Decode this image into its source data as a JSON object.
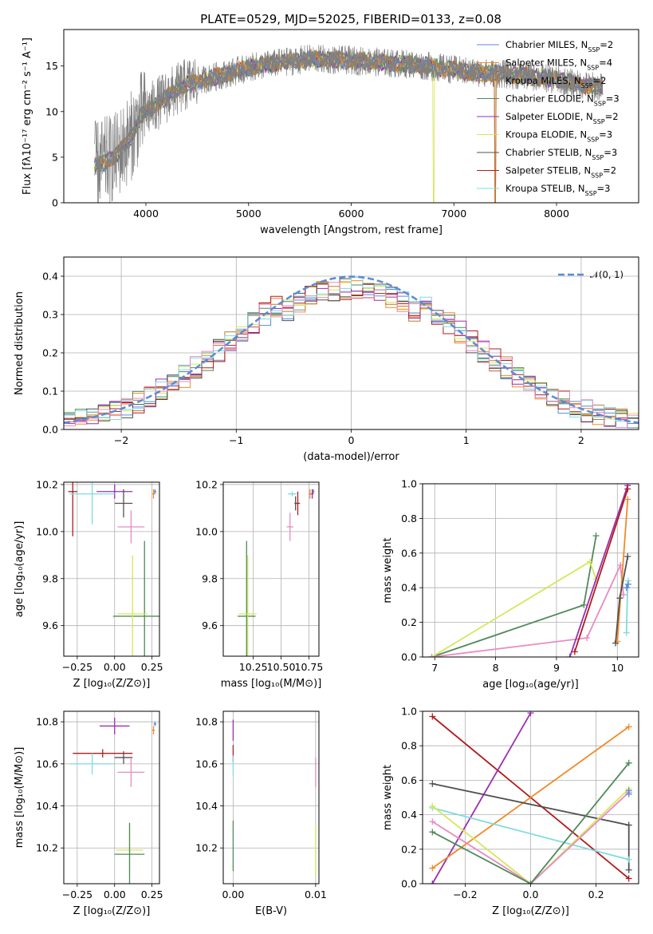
{
  "colors": {
    "Chabrier MILES": "#5b8bd6",
    "Salpeter MILES": "#f08a2a",
    "Kroupa MILES": "#c07a2a",
    "Chabrier ELODIE": "#4f8a5b",
    "Salpeter ELODIE": "#9a2fb0",
    "Kroupa ELODIE": "#d7e65a",
    "Chabrier STELIB": "#505050",
    "Salpeter STELIB": "#b01c1c",
    "Kroupa STELIB": "#7fdbe0",
    "pink": "#e78ac3"
  },
  "chart_data": [
    {
      "id": "spectrum",
      "type": "line",
      "title": "PLATE=0529, MJD=52025, FIBERID=0133, z=0.08",
      "xlabel": "wavelength [Angstrom, rest frame]",
      "ylabel": "Flux [fλ10⁻¹⁷ erg cm⁻² s⁻¹ A⁻¹]",
      "xlim": [
        3200,
        8800
      ],
      "ylim": [
        0,
        19
      ],
      "xticks": [
        4000,
        5000,
        6000,
        7000,
        8000
      ],
      "yticks": [
        0,
        5,
        10,
        15
      ],
      "grid": false,
      "legend_position": "top-right",
      "legend": [
        {
          "label": "Chabrier MILES, N",
          "sub": "SSP",
          "tail": "=2"
        },
        {
          "label": "Salpeter MILES, N",
          "sub": "SSP",
          "tail": "=4"
        },
        {
          "label": "Kroupa MILES, N",
          "sub": "SSP",
          "tail": "=2"
        },
        {
          "label": "Chabrier ELODIE, N",
          "sub": "SSP",
          "tail": "=3"
        },
        {
          "label": "Salpeter ELODIE, N",
          "sub": "SSP",
          "tail": "=2"
        },
        {
          "label": "Kroupa ELODIE, N",
          "sub": "SSP",
          "tail": "=3"
        },
        {
          "label": "Chabrier STELIB, N",
          "sub": "SSP",
          "tail": "=3"
        },
        {
          "label": "Salpeter STELIB, N",
          "sub": "SSP",
          "tail": "=2"
        },
        {
          "label": "Kroupa STELIB, N",
          "sub": "SSP",
          "tail": "=3"
        }
      ],
      "continuum": {
        "x": [
          3500,
          3700,
          3850,
          3950,
          4100,
          4250,
          4400,
          4600,
          4800,
          5000,
          5200,
          5400,
          5600,
          5800,
          6000,
          6200,
          6400,
          6600,
          6800,
          7000,
          7200,
          7400,
          7600,
          7800,
          8000,
          8200,
          8500
        ],
        "y": [
          4.0,
          5.0,
          7.2,
          9.5,
          10.8,
          12.0,
          13.0,
          13.6,
          14.2,
          14.8,
          15.2,
          15.5,
          15.8,
          15.7,
          15.6,
          15.5,
          15.3,
          15.2,
          14.9,
          14.6,
          14.3,
          14.2,
          14.0,
          13.8,
          13.5,
          13.0,
          12.6
        ]
      }
    },
    {
      "id": "residuals",
      "type": "line",
      "xlabel": "(data-model)/error",
      "ylabel": "Normed distribution",
      "xlim": [
        -2.5,
        2.5
      ],
      "ylim": [
        0,
        0.45
      ],
      "xticks": [
        -2,
        -1,
        0,
        1,
        2
      ],
      "yticks": [
        0.0,
        0.1,
        0.2,
        0.3,
        0.4
      ],
      "grid": true,
      "legend": [
        {
          "label": "𝒩(0, 1)"
        }
      ],
      "legend_position": "top-right"
    },
    {
      "id": "age_vs_Z",
      "type": "scatter",
      "xlabel": "Z [log₁₀(Z/Z⊙)]",
      "ylabel": "age  [log₁₀(age/yr)]",
      "xlim": [
        -0.34,
        0.3
      ],
      "ylim": [
        9.47,
        10.21
      ],
      "xticks": [
        -0.25,
        0.0,
        0.25
      ],
      "yticks": [
        9.6,
        9.8,
        10.0,
        10.2
      ],
      "points": [
        {
          "color": "Chabrier MILES",
          "x": 0.27,
          "y": 10.17,
          "xerr": 0.01,
          "yerr": 0.01
        },
        {
          "color": "Salpeter MILES",
          "x": 0.26,
          "y": 10.16,
          "xerr": 0.01,
          "yerr": 0.02
        },
        {
          "color": "Salpeter STELIB",
          "x": -0.28,
          "y": 10.17,
          "xerr": 0.03,
          "yerr": 0.19
        },
        {
          "color": "Salpeter ELODIE",
          "x": 0.0,
          "y": 10.17,
          "xerr": 0.12,
          "yerr": 0.03
        },
        {
          "color": "Kroupa STELIB",
          "x": -0.15,
          "y": 10.16,
          "xerr": 0.15,
          "yerr": 0.13
        },
        {
          "color": "Chabrier STELIB",
          "x": 0.06,
          "y": 10.12,
          "xerr": 0.06,
          "yerr": 0.06
        },
        {
          "color": "pink",
          "x": 0.11,
          "y": 10.02,
          "xerr": 0.09,
          "yerr": 0.07
        },
        {
          "color": "Chabrier ELODIE",
          "x": 0.2,
          "y": 9.64,
          "xerr": 0.21,
          "yerr": 0.32
        },
        {
          "color": "Kroupa ELODIE",
          "x": 0.12,
          "y": 9.65,
          "xerr": 0.1,
          "yerr": 0.25
        }
      ]
    },
    {
      "id": "age_vs_mass",
      "type": "scatter",
      "xlabel": "mass [log₁₀(M/M⊙)]",
      "ylabel": "",
      "xlim": [
        9.98,
        10.84
      ],
      "ylim": [
        9.47,
        10.21
      ],
      "xticks": [
        10.25,
        10.5,
        10.75
      ],
      "yticks": [
        9.6,
        9.8,
        10.0,
        10.2
      ],
      "points": [
        {
          "color": "Chabrier MILES",
          "x": 10.79,
          "y": 10.17,
          "xerr": 0.01,
          "yerr": 0.01
        },
        {
          "color": "Salpeter MILES",
          "x": 10.76,
          "y": 10.16,
          "xerr": 0.01,
          "yerr": 0.02
        },
        {
          "color": "Salpeter ELODIE",
          "x": 10.78,
          "y": 10.16,
          "xerr": 0.01,
          "yerr": 0.02
        },
        {
          "color": "Kroupa STELIB",
          "x": 10.6,
          "y": 10.16,
          "xerr": 0.04,
          "yerr": 0.01
        },
        {
          "color": "Salpeter STELIB",
          "x": 10.65,
          "y": 10.12,
          "xerr": 0.02,
          "yerr": 0.05
        },
        {
          "color": "Chabrier STELIB",
          "x": 10.63,
          "y": 10.12,
          "xerr": 0.01,
          "yerr": 0.03
        },
        {
          "color": "pink",
          "x": 10.58,
          "y": 10.02,
          "xerr": 0.03,
          "yerr": 0.06
        },
        {
          "color": "Chabrier ELODIE",
          "x": 10.19,
          "y": 9.64,
          "xerr": 0.08,
          "yerr": 0.32
        },
        {
          "color": "Kroupa ELODIE",
          "x": 10.2,
          "y": 9.65,
          "xerr": 0.08,
          "yerr": 0.25
        }
      ]
    },
    {
      "id": "massweight_vs_age",
      "type": "line",
      "xlabel": "age  [log₁₀(age/yr)]",
      "ylabel": "mass weight",
      "xlim": [
        6.8,
        10.35
      ],
      "ylim": [
        0,
        1
      ],
      "xticks": [
        7,
        8,
        9,
        10
      ],
      "yticks": [
        0.0,
        0.2,
        0.4,
        0.6,
        0.8,
        1.0
      ],
      "grid": true,
      "series": [
        {
          "color": "Chabrier ELODIE",
          "x": [
            6.95,
            9.45,
            9.65
          ],
          "y": [
            0.0,
            0.3,
            0.7
          ]
        },
        {
          "color": "Kroupa ELODIE",
          "x": [
            6.95,
            9.55,
            9.65
          ],
          "y": [
            0.0,
            0.55,
            0.45
          ]
        },
        {
          "color": "pink",
          "x": [
            6.95,
            9.5,
            10.05,
            10.1
          ],
          "y": [
            0.0,
            0.11,
            0.53,
            0.36
          ]
        },
        {
          "color": "Salpeter ELODIE",
          "x": [
            9.22,
            10.17
          ],
          "y": [
            0.0,
            0.99
          ]
        },
        {
          "color": "Salpeter STELIB",
          "x": [
            9.3,
            10.17
          ],
          "y": [
            0.03,
            0.97
          ]
        },
        {
          "color": "Salpeter MILES",
          "x": [
            10.0,
            10.17
          ],
          "y": [
            0.09,
            0.91
          ]
        },
        {
          "color": "Chabrier STELIB",
          "x": [
            9.97,
            10.04,
            10.17
          ],
          "y": [
            0.08,
            0.34,
            0.58
          ]
        },
        {
          "color": "Kroupa STELIB",
          "x": [
            10.15,
            10.17,
            10.18
          ],
          "y": [
            0.14,
            0.42,
            0.44
          ]
        },
        {
          "color": "Chabrier MILES",
          "x": [
            10.15,
            10.18
          ],
          "y": [
            0.4,
            0.42
          ]
        }
      ]
    },
    {
      "id": "mass_vs_Z",
      "type": "scatter",
      "xlabel": "Z [log₁₀(Z/Z⊙)]",
      "ylabel": "mass [log₁₀(M/M⊙)]",
      "xlim": [
        -0.34,
        0.3
      ],
      "ylim": [
        10.03,
        10.85
      ],
      "xticks": [
        -0.25,
        0.0,
        0.25
      ],
      "yticks": [
        10.2,
        10.4,
        10.6,
        10.8
      ],
      "points": [
        {
          "color": "Chabrier MILES",
          "x": 0.27,
          "y": 10.79,
          "xerr": 0.01,
          "yerr": 0.01
        },
        {
          "color": "Salpeter MILES",
          "x": 0.26,
          "y": 10.76,
          "xerr": 0.01,
          "yerr": 0.02
        },
        {
          "color": "Salpeter ELODIE",
          "x": 0.0,
          "y": 10.78,
          "xerr": 0.1,
          "yerr": 0.04
        },
        {
          "color": "Salpeter STELIB",
          "x": -0.08,
          "y": 10.65,
          "xerr": 0.2,
          "yerr": 0.02
        },
        {
          "color": "Chabrier STELIB",
          "x": 0.06,
          "y": 10.63,
          "xerr": 0.06,
          "yerr": 0.03
        },
        {
          "color": "Kroupa STELIB",
          "x": -0.15,
          "y": 10.6,
          "xerr": 0.15,
          "yerr": 0.05
        },
        {
          "color": "pink",
          "x": 0.11,
          "y": 10.56,
          "xerr": 0.09,
          "yerr": 0.07
        },
        {
          "color": "Kroupa ELODIE",
          "x": 0.1,
          "y": 10.19,
          "xerr": 0.09,
          "yerr": 0.12
        },
        {
          "color": "Chabrier ELODIE",
          "x": 0.1,
          "y": 10.17,
          "xerr": 0.1,
          "yerr": 0.15
        }
      ]
    },
    {
      "id": "mass_vs_EBV",
      "type": "scatter",
      "xlabel": "E(B-V)",
      "ylabel": "",
      "xlim": [
        -0.0012,
        0.0104
      ],
      "ylim": [
        10.03,
        10.85
      ],
      "xticks": [
        0.0,
        0.01
      ],
      "yticks": [
        10.2,
        10.4,
        10.6,
        10.8
      ],
      "points": [
        {
          "color": "Salpeter ELODIE",
          "x": 0.0,
          "y": 10.76,
          "xerr": 0.0,
          "yerr": 0.05
        },
        {
          "color": "Salpeter STELIB",
          "x": 0.0,
          "y": 10.65,
          "xerr": 0.0,
          "yerr": 0.04
        },
        {
          "color": "Kroupa STELIB",
          "x": 0.0,
          "y": 10.59,
          "xerr": 0.0,
          "yerr": 0.05
        },
        {
          "color": "Chabrier ELODIE",
          "x": 0.0,
          "y": 10.21,
          "xerr": 0.0,
          "yerr": 0.12
        },
        {
          "color": "pink",
          "x": 0.01,
          "y": 10.56,
          "xerr": 0.0,
          "yerr": 0.07
        },
        {
          "color": "Kroupa ELODIE",
          "x": 0.01,
          "y": 10.19,
          "xerr": 0.0,
          "yerr": 0.12
        }
      ]
    },
    {
      "id": "massweight_vs_Z",
      "type": "line",
      "xlabel": "Z [log₁₀(Z/Z⊙)]",
      "ylabel": "mass weight",
      "xlim": [
        -0.33,
        0.33
      ],
      "ylim": [
        0,
        1
      ],
      "xticks": [
        -0.2,
        0.0,
        0.2
      ],
      "yticks": [
        0.0,
        0.2,
        0.4,
        0.6,
        0.8,
        1.0
      ],
      "grid": true,
      "series": [
        {
          "color": "Salpeter STELIB",
          "x": [
            -0.3,
            0.3
          ],
          "y": [
            0.97,
            0.03
          ]
        },
        {
          "color": "Salpeter ELODIE",
          "x": [
            -0.3,
            0.0
          ],
          "y": [
            0.0,
            0.99
          ]
        },
        {
          "color": "Salpeter MILES",
          "x": [
            -0.3,
            0.3
          ],
          "y": [
            0.09,
            0.91
          ]
        },
        {
          "color": "Chabrier STELIB",
          "x": [
            -0.3,
            0.3,
            0.3
          ],
          "y": [
            0.58,
            0.34,
            0.08
          ]
        },
        {
          "color": "Kroupa STELIB",
          "x": [
            -0.3,
            0.3
          ],
          "y": [
            0.44,
            0.14
          ]
        },
        {
          "color": "Kroupa ELODIE",
          "x": [
            -0.3,
            0.0,
            0.3
          ],
          "y": [
            0.45,
            0.0,
            0.55
          ]
        },
        {
          "color": "pink",
          "x": [
            -0.3,
            0.0,
            0.3
          ],
          "y": [
            0.36,
            0.0,
            0.53
          ]
        },
        {
          "color": "Chabrier ELODIE",
          "x": [
            -0.3,
            0.0,
            0.3
          ],
          "y": [
            0.3,
            0.0,
            0.7
          ]
        },
        {
          "color": "Chabrier MILES",
          "x": [
            0.3,
            0.3
          ],
          "y": [
            0.52,
            0.54
          ]
        }
      ]
    }
  ]
}
